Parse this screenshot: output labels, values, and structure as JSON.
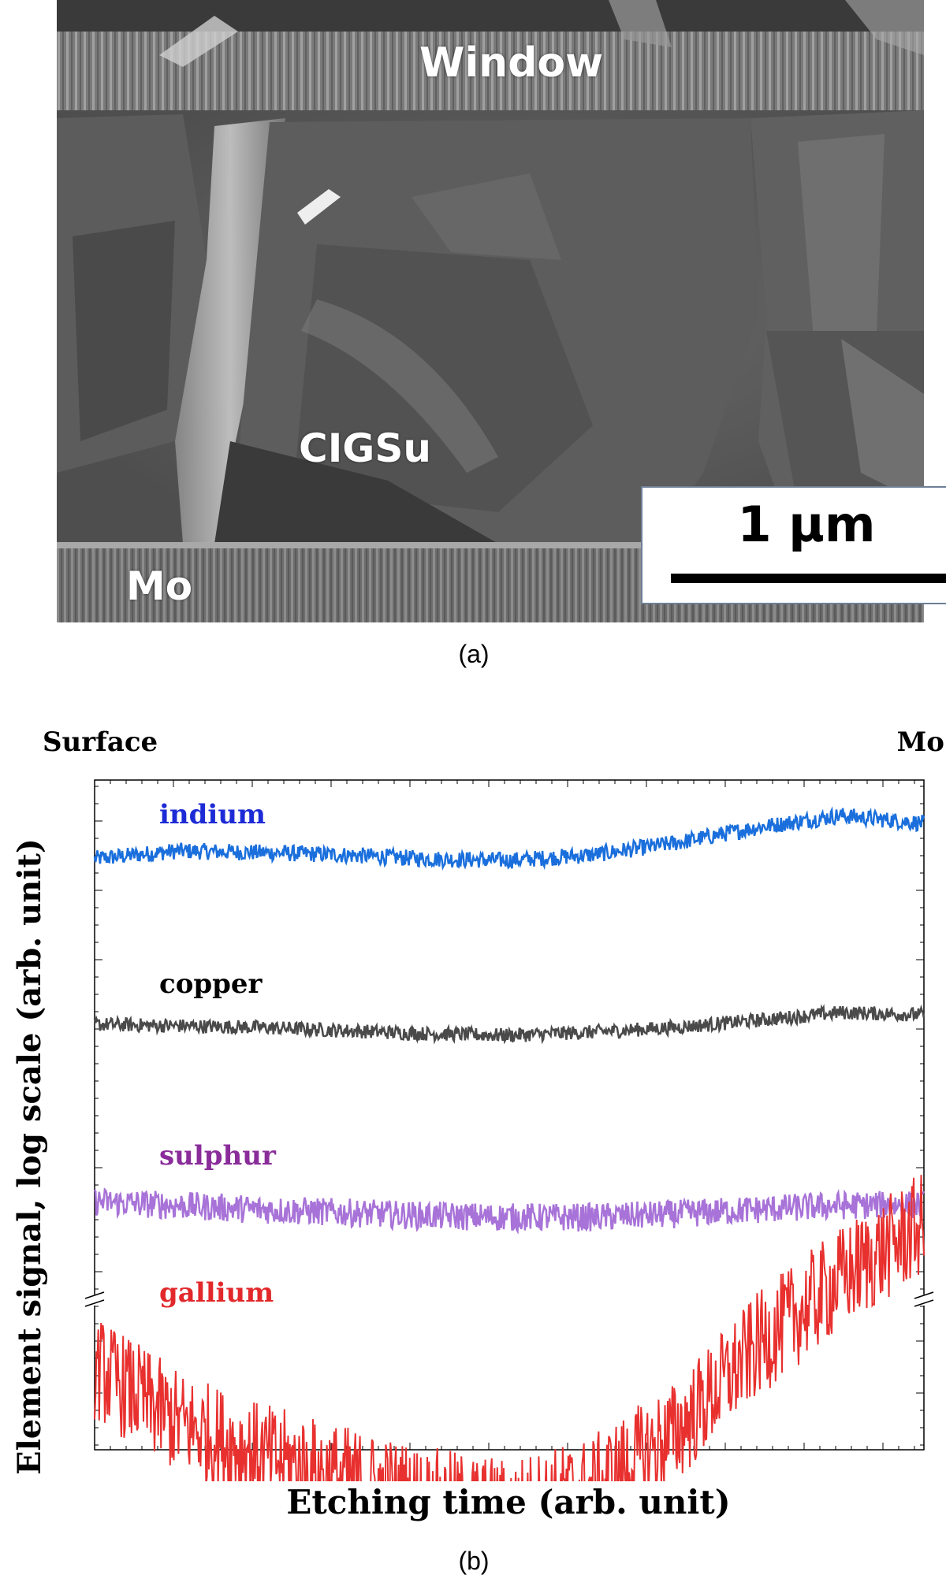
{
  "panel_a": {
    "caption": "(a)",
    "labels": {
      "window": "Window",
      "cigsu": "CIGSu",
      "mo": "Mo"
    },
    "scale_bar": "1 µm"
  },
  "panel_b": {
    "caption": "(b)",
    "end_labels": {
      "left": "Surface",
      "right": "Mo"
    }
  },
  "chart_data": {
    "type": "line",
    "xlabel": "Etching time (arb. unit)",
    "ylabel": "Element signal, log scale (arb. unit)",
    "y_scale": "log",
    "axis_break": "between sulphur and gallium",
    "grid": false,
    "legend": "inline labels above each curve",
    "x": [
      0,
      0.1,
      0.2,
      0.3,
      0.4,
      0.5,
      0.6,
      0.7,
      0.8,
      0.9,
      1.0
    ],
    "series": [
      {
        "name": "indium",
        "color": "#1a6fdc",
        "label_color": "#1d2bd6",
        "noise": 0.35,
        "values": [
          5.0,
          5.1,
          5.08,
          5.05,
          5.0,
          4.98,
          5.05,
          5.2,
          5.4,
          5.55,
          5.45
        ]
      },
      {
        "name": "copper",
        "color": "#4a4a4a",
        "label_color": "#000000",
        "noise": 0.3,
        "values": [
          3.5,
          3.48,
          3.46,
          3.42,
          3.38,
          3.36,
          3.4,
          3.46,
          3.55,
          3.65,
          3.62
        ]
      },
      {
        "name": "sulphur",
        "color": "#a873d8",
        "label_color": "#8a2c9a",
        "noise": 0.6,
        "values": [
          1.9,
          1.85,
          1.8,
          1.76,
          1.72,
          1.7,
          1.7,
          1.74,
          1.8,
          1.85,
          1.86
        ]
      },
      {
        "name": "gallium",
        "color": "#e8302e",
        "label_color": "#e2282a",
        "noise": 1.6,
        "values": [
          1.3,
          0.8,
          0.5,
          0.3,
          0.1,
          0.0,
          0.2,
          0.7,
          1.5,
          2.1,
          2.6
        ]
      }
    ]
  }
}
